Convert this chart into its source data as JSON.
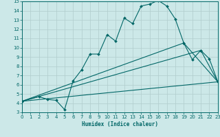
{
  "xlabel": "Humidex (Indice chaleur)",
  "bg_color": "#cce8e8",
  "grid_color": "#b0cccc",
  "line_color": "#006666",
  "xlim": [
    0,
    23
  ],
  "ylim": [
    3,
    15
  ],
  "xticks": [
    0,
    1,
    2,
    3,
    4,
    5,
    6,
    7,
    8,
    9,
    10,
    11,
    12,
    13,
    14,
    15,
    16,
    17,
    18,
    19,
    20,
    21,
    22,
    23
  ],
  "yticks": [
    3,
    4,
    5,
    6,
    7,
    8,
    9,
    10,
    11,
    12,
    13,
    14,
    15
  ],
  "series_main": [
    [
      0,
      4.2
    ],
    [
      2,
      4.7
    ],
    [
      3,
      4.4
    ],
    [
      4,
      4.3
    ],
    [
      5,
      3.3
    ],
    [
      6,
      6.4
    ],
    [
      7,
      7.6
    ],
    [
      8,
      9.3
    ],
    [
      9,
      9.3
    ],
    [
      10,
      11.4
    ],
    [
      11,
      10.7
    ],
    [
      12,
      13.2
    ],
    [
      13,
      12.6
    ],
    [
      14,
      14.5
    ],
    [
      15,
      14.7
    ],
    [
      16,
      15.1
    ],
    [
      17,
      14.5
    ],
    [
      18,
      13.1
    ],
    [
      19,
      10.5
    ],
    [
      20,
      8.7
    ],
    [
      21,
      9.7
    ],
    [
      22,
      8.8
    ],
    [
      23,
      6.3
    ]
  ],
  "series_straight": [
    [
      0,
      4.2
    ],
    [
      23,
      6.3
    ]
  ],
  "series_mid1": [
    [
      0,
      4.2
    ],
    [
      21,
      9.7
    ],
    [
      23,
      6.3
    ]
  ],
  "series_mid2": [
    [
      0,
      4.2
    ],
    [
      19,
      10.5
    ],
    [
      23,
      6.3
    ]
  ]
}
